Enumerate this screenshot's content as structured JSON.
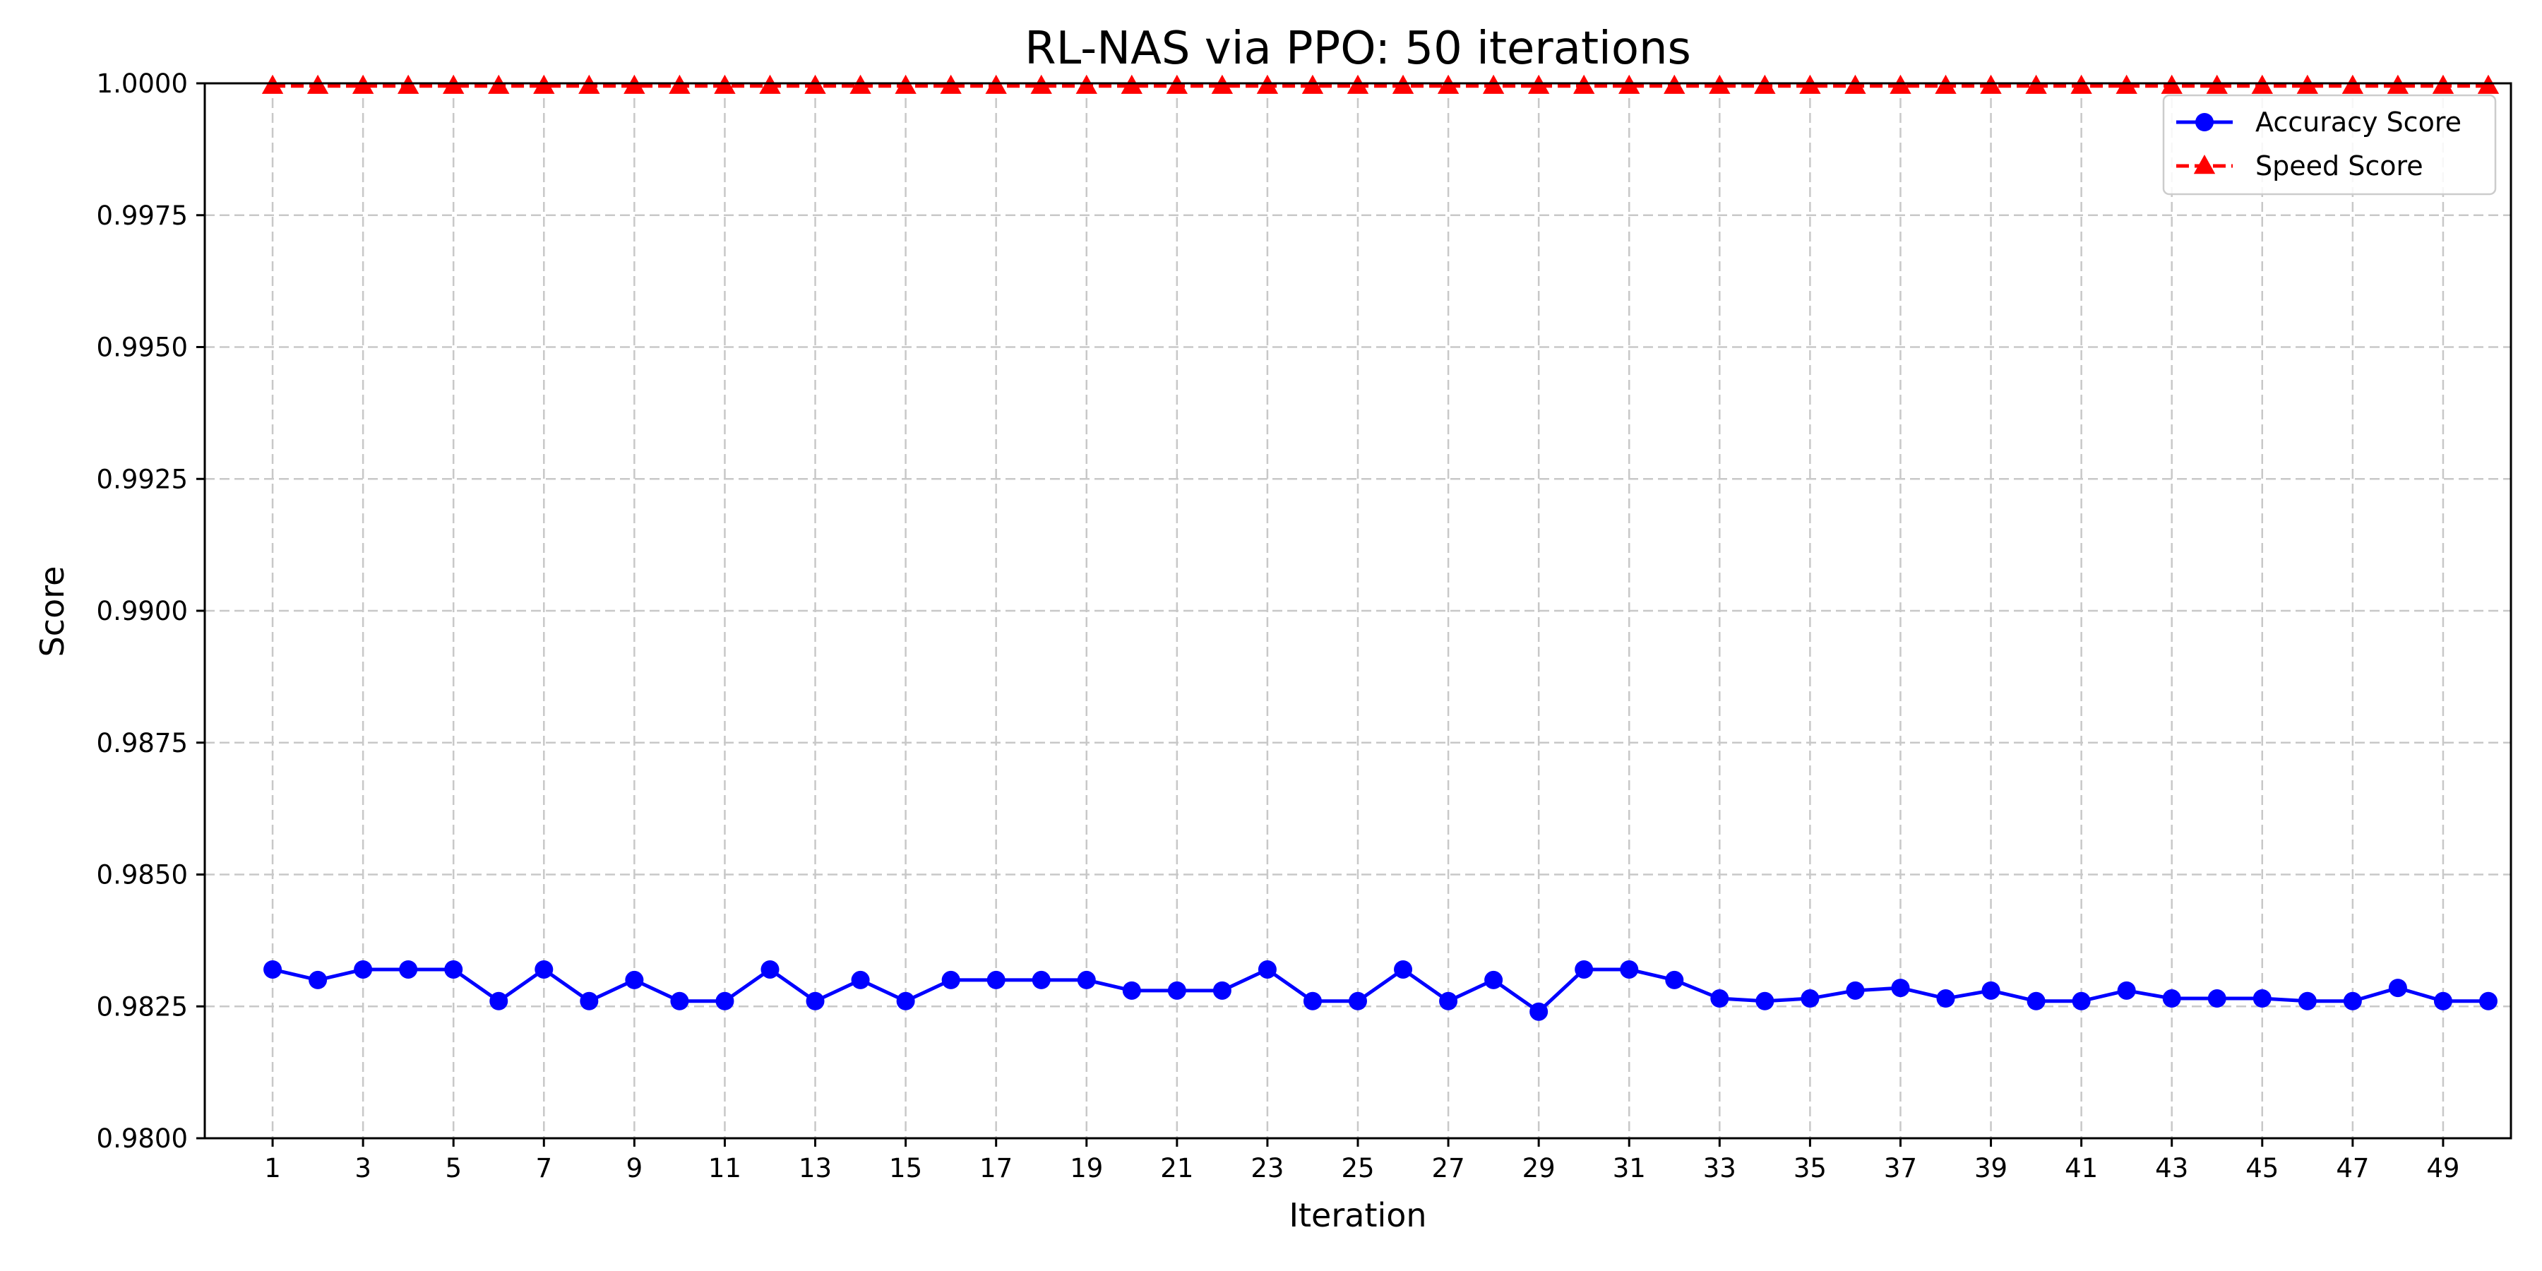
{
  "chart_data": {
    "type": "line",
    "title": "RL-NAS via PPO: 50 iterations",
    "xlabel": "Iteration",
    "ylabel": "Score",
    "ylim": [
      0.98,
      1.0
    ],
    "xlim": [
      -0.5,
      50.5
    ],
    "grid": true,
    "legend_position": "top-right",
    "x": [
      1,
      2,
      3,
      4,
      5,
      6,
      7,
      8,
      9,
      10,
      11,
      12,
      13,
      14,
      15,
      16,
      17,
      18,
      19,
      20,
      21,
      22,
      23,
      24,
      25,
      26,
      27,
      28,
      29,
      30,
      31,
      32,
      33,
      34,
      35,
      36,
      37,
      38,
      39,
      40,
      41,
      42,
      43,
      44,
      45,
      46,
      47,
      48,
      49,
      50
    ],
    "x_ticks": [
      1,
      3,
      5,
      7,
      9,
      11,
      13,
      15,
      17,
      19,
      21,
      23,
      25,
      27,
      29,
      31,
      33,
      35,
      37,
      39,
      41,
      43,
      45,
      47,
      49
    ],
    "x_tick_labels": [
      "1",
      "3",
      "5",
      "7",
      "9",
      "11",
      "13",
      "15",
      "17",
      "19",
      "21",
      "23",
      "25",
      "27",
      "29",
      "31",
      "33",
      "35",
      "37",
      "39",
      "41",
      "43",
      "45",
      "47",
      "49"
    ],
    "y_ticks": [
      0.98,
      0.9825,
      0.985,
      0.9875,
      0.99,
      0.9925,
      0.995,
      0.9975,
      1.0
    ],
    "y_tick_labels": [
      "0.9800",
      "0.9825",
      "0.9850",
      "0.9875",
      "0.9900",
      "0.9925",
      "0.9950",
      "0.9975",
      "1.0000"
    ],
    "series": [
      {
        "name": "Accuracy Score",
        "color": "#0000ff",
        "marker": "circle",
        "linestyle": "solid",
        "values": [
          0.9832,
          0.983,
          0.9832,
          0.9832,
          0.9832,
          0.9826,
          0.9832,
          0.9826,
          0.983,
          0.9826,
          0.9826,
          0.9832,
          0.9826,
          0.983,
          0.9826,
          0.983,
          0.983,
          0.983,
          0.983,
          0.9828,
          0.9828,
          0.9828,
          0.9832,
          0.9826,
          0.9826,
          0.9832,
          0.9826,
          0.983,
          0.9824,
          0.9832,
          0.9832,
          0.983,
          0.98265,
          0.9826,
          0.98265,
          0.9828,
          0.98285,
          0.98265,
          0.9828,
          0.9826,
          0.9826,
          0.9828,
          0.98265,
          0.98265,
          0.98265,
          0.9826,
          0.9826,
          0.98285,
          0.9826,
          0.9826
        ]
      },
      {
        "name": "Speed Score",
        "color": "#ff0000",
        "marker": "triangle",
        "linestyle": "dashed",
        "values": [
          0.99995,
          0.99995,
          0.99995,
          0.99995,
          0.99995,
          0.99995,
          0.99995,
          0.99995,
          0.99995,
          0.99995,
          0.99995,
          0.99995,
          0.99995,
          0.99995,
          0.99995,
          0.99995,
          0.99995,
          0.99995,
          0.99995,
          0.99995,
          0.99995,
          0.99995,
          0.99995,
          0.99995,
          0.99995,
          0.99995,
          0.99995,
          0.99995,
          0.99995,
          0.99995,
          0.99995,
          0.99995,
          0.99995,
          0.99995,
          0.99995,
          0.99995,
          0.99995,
          0.99995,
          0.99995,
          0.99995,
          0.99995,
          0.99995,
          0.99995,
          0.99995,
          0.99995,
          0.99995,
          0.99995,
          0.99995,
          0.99995,
          0.99995
        ]
      }
    ]
  }
}
